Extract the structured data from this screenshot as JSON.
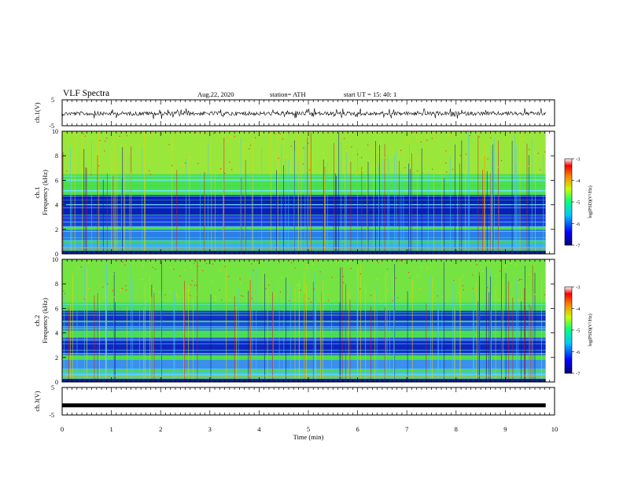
{
  "header": {
    "title": "VLF Spectra",
    "date": "Aug.22, 2020",
    "station": "station= ATH",
    "start": "start  UT =   15: 40: 1"
  },
  "chart_data": [
    {
      "type": "line",
      "panel": "ch1-waveform",
      "ylabel": "ch.1(V)",
      "xlim": [
        0,
        10
      ],
      "ylim": [
        -5,
        5
      ],
      "yticks": [
        "5",
        "-5"
      ],
      "baseline_value": -0.3,
      "series": [
        {
          "values": []
        }
      ]
    },
    {
      "type": "heatmap",
      "panel": "ch1-spectrogram",
      "ylabel_channel": "ch.1",
      "ylabel": "Frequency  (kHz)",
      "xlim": [
        0,
        10
      ],
      "ylim": [
        0,
        10
      ],
      "yticks": [
        "0",
        "2",
        "4",
        "6",
        "8",
        "10"
      ],
      "colorbar": {
        "label": "log(PSD)(V²/Hz)",
        "range": [
          -7,
          -3
        ],
        "ticks": [
          "-3",
          "-4",
          "-5",
          "-6",
          "-7"
        ]
      }
    },
    {
      "type": "heatmap",
      "panel": "ch2-spectrogram",
      "ylabel_channel": "ch.2",
      "ylabel": "Frequency  (kHz)",
      "xlim": [
        0,
        10
      ],
      "ylim": [
        0,
        10
      ],
      "yticks": [
        "0",
        "2",
        "4",
        "6",
        "8",
        "10"
      ],
      "colorbar": {
        "label": "log(PSD)(V²/Hz)",
        "range": [
          -7,
          -3
        ],
        "ticks": [
          "-3",
          "-4",
          "-5",
          "-6",
          "-7"
        ]
      }
    },
    {
      "type": "line",
      "panel": "ch3-waveform",
      "ylabel": "ch.3(V)",
      "xlim": [
        0,
        10
      ],
      "ylim": [
        -5,
        5
      ],
      "yticks": [
        "5",
        "-5"
      ],
      "baseline_value": -1.5,
      "series": [
        {
          "values": []
        }
      ]
    }
  ],
  "xaxis": {
    "label": "Time  (min)",
    "ticks": [
      "0",
      "1",
      "2",
      "3",
      "4",
      "5",
      "6",
      "7",
      "8",
      "9",
      "10"
    ],
    "data_end": 9.82
  }
}
